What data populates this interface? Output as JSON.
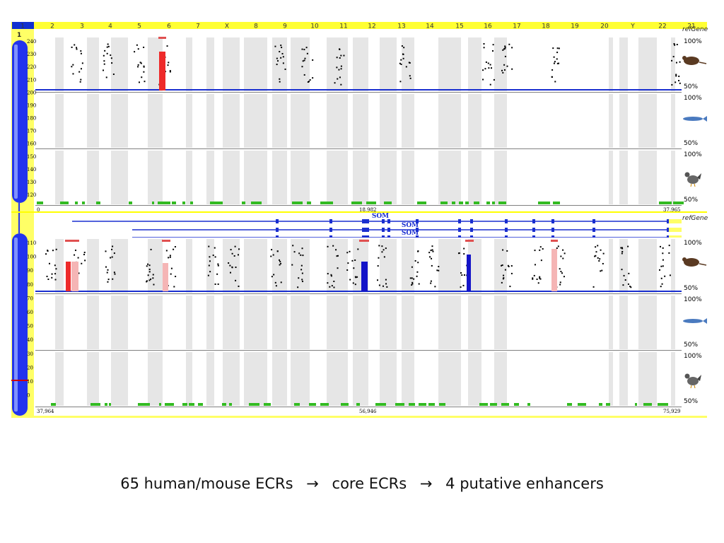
{
  "chromosome_bar": {
    "items": [
      "1",
      "2",
      "3",
      "4",
      "5",
      "6",
      "7",
      "X",
      "8",
      "9",
      "10",
      "11",
      "12",
      "13",
      "14",
      "15",
      "16",
      "17",
      "18",
      "19",
      "20",
      "Y",
      "22",
      "21"
    ],
    "active": "1",
    "active_color": "#1030d0",
    "bar_color": "#ffff33"
  },
  "ideogram": {
    "label": "1"
  },
  "track_label": "refGene",
  "panels": [
    {
      "id": "top",
      "start_label": "0",
      "mid_label": "18,982",
      "end_label": "37,965",
      "scale_ticks": [
        "240",
        "230",
        "220",
        "210",
        "200",
        "190",
        "180",
        "170",
        "160",
        "150",
        "140",
        "130",
        "120"
      ]
    },
    {
      "id": "bottom",
      "start_label": "37,964",
      "mid_label": "56,946",
      "end_label": "75,929",
      "scale_ticks": [
        "110",
        "100",
        "90",
        "80",
        "70",
        "60",
        "50",
        "40",
        "30",
        "20",
        "10",
        "0"
      ]
    }
  ],
  "species": [
    {
      "name": "mouse",
      "top_pct": "100%",
      "bottom_pct": "50%",
      "icon": "mouse-icon"
    },
    {
      "name": "fish",
      "top_pct": "100%",
      "bottom_pct": "50%",
      "icon": "fish-icon"
    },
    {
      "name": "chicken",
      "top_pct": "100%",
      "bottom_pct": "50%",
      "icon": "chicken-icon"
    }
  ],
  "genes": [
    "SOM",
    "SOM",
    "SOM",
    "SOM"
  ],
  "colors": {
    "coding_ecr": "#1414c8",
    "utr_ecr": "#f5b5b5",
    "intergenic_ecr": "#ee2a2a",
    "repeat_shade": "#e6e6e6",
    "conservation_bar": "#33bb22",
    "highlight_box": "#e05050"
  },
  "caption": {
    "part1": "65 human/mouse ECRs",
    "arrow1": "→",
    "part2": "core ECRs",
    "arrow2": "→",
    "part3": "4 putative enhancers"
  }
}
